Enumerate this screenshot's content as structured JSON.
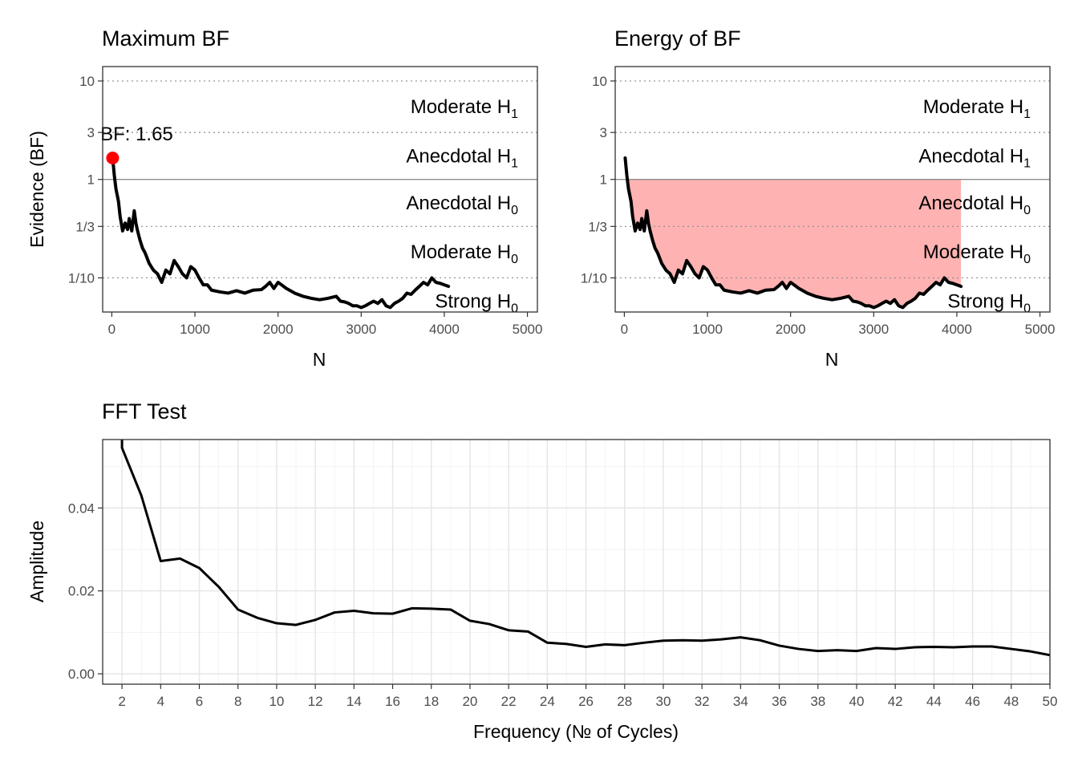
{
  "chart_data": [
    {
      "type": "line",
      "title": "Maximum BF",
      "xlabel": "N",
      "ylabel": "Evidence (BF)",
      "y_scale": "log",
      "xlim": [
        -110,
        5120
      ],
      "ylim": [
        0.045,
        14
      ],
      "x_ticks": [
        0,
        1000,
        2000,
        3000,
        4000,
        5000
      ],
      "x_tick_labels": [
        "0",
        "1000",
        "2000",
        "3000",
        "4000",
        "5000"
      ],
      "y_ticks": [
        0.1,
        0.333,
        1,
        3,
        10
      ],
      "y_tick_labels": [
        "1/10",
        "1/3",
        "1",
        "3",
        "10"
      ],
      "dotted_reference_lines": [
        0.1,
        0.333,
        3,
        10
      ],
      "solid_reference_line": 1,
      "evidence_labels": [
        {
          "main": "Moderate H",
          "sub": "1",
          "y": 5.48
        },
        {
          "main": "Anecdotal H",
          "sub": "1",
          "y": 1.73
        },
        {
          "main": "Anecdotal H",
          "sub": "0",
          "y": 0.577
        },
        {
          "main": "Moderate H",
          "sub": "0",
          "y": 0.183
        },
        {
          "main": "Strong H",
          "sub": "0",
          "y": 0.058
        }
      ],
      "max_point": {
        "x": 10,
        "y": 1.65,
        "label": "BF: 1.65",
        "color": "#ff0000"
      },
      "series": [
        {
          "x": [
            10,
            30,
            50,
            80,
            100,
            130,
            160,
            190,
            210,
            240,
            270,
            290,
            310,
            340,
            370,
            400,
            450,
            500,
            550,
            600,
            650,
            700,
            750,
            800,
            850,
            900,
            950,
            1000,
            1050,
            1100,
            1150,
            1200,
            1300,
            1400,
            1500,
            1600,
            1700,
            1800,
            1850,
            1900,
            1950,
            2000,
            2050,
            2100,
            2150,
            2200,
            2300,
            2400,
            2500,
            2600,
            2700,
            2750,
            2800,
            2850,
            2900,
            2950,
            3000,
            3050,
            3100,
            3150,
            3200,
            3250,
            3300,
            3350,
            3400,
            3450,
            3500,
            3550,
            3600,
            3650,
            3700,
            3750,
            3800,
            3850,
            3900,
            3950,
            4000,
            4050
          ],
          "values": [
            1.65,
            1.1,
            0.8,
            0.6,
            0.42,
            0.3,
            0.36,
            0.31,
            0.4,
            0.3,
            0.48,
            0.36,
            0.3,
            0.24,
            0.2,
            0.18,
            0.14,
            0.12,
            0.11,
            0.09,
            0.12,
            0.11,
            0.15,
            0.13,
            0.11,
            0.1,
            0.13,
            0.12,
            0.1,
            0.085,
            0.085,
            0.075,
            0.072,
            0.07,
            0.074,
            0.07,
            0.075,
            0.076,
            0.082,
            0.09,
            0.078,
            0.09,
            0.084,
            0.078,
            0.074,
            0.07,
            0.065,
            0.062,
            0.06,
            0.062,
            0.065,
            0.058,
            0.057,
            0.055,
            0.052,
            0.052,
            0.05,
            0.052,
            0.055,
            0.058,
            0.055,
            0.06,
            0.052,
            0.05,
            0.055,
            0.058,
            0.062,
            0.07,
            0.068,
            0.075,
            0.082,
            0.09,
            0.085,
            0.1,
            0.09,
            0.088,
            0.085,
            0.082
          ]
        }
      ]
    },
    {
      "type": "area",
      "title": "Energy of BF",
      "xlabel": "N",
      "ylabel": "",
      "y_scale": "log",
      "xlim": [
        -110,
        5120
      ],
      "ylim": [
        0.045,
        14
      ],
      "x_ticks": [
        0,
        1000,
        2000,
        3000,
        4000,
        5000
      ],
      "x_tick_labels": [
        "0",
        "1000",
        "2000",
        "3000",
        "4000",
        "5000"
      ],
      "y_ticks": [
        0.1,
        0.333,
        1,
        3,
        10
      ],
      "y_tick_labels": [
        "1/10",
        "1/3",
        "1",
        "3",
        "10"
      ],
      "dotted_reference_lines": [
        0.1,
        0.333,
        3,
        10
      ],
      "solid_reference_line": 1,
      "evidence_labels": [
        {
          "main": "Moderate H",
          "sub": "1",
          "y": 5.48
        },
        {
          "main": "Anecdotal H",
          "sub": "1",
          "y": 1.73
        },
        {
          "main": "Anecdotal H",
          "sub": "0",
          "y": 0.577
        },
        {
          "main": "Moderate H",
          "sub": "0",
          "y": 0.183
        },
        {
          "main": "Strong H",
          "sub": "0",
          "y": 0.058
        }
      ],
      "fill_color": "#ff0000",
      "fill_opacity": 0.3,
      "fill_between": "series and BF = 1",
      "series": [
        {
          "x": [
            10,
            30,
            50,
            80,
            100,
            130,
            160,
            190,
            210,
            240,
            270,
            290,
            310,
            340,
            370,
            400,
            450,
            500,
            550,
            600,
            650,
            700,
            750,
            800,
            850,
            900,
            950,
            1000,
            1050,
            1100,
            1150,
            1200,
            1300,
            1400,
            1500,
            1600,
            1700,
            1800,
            1850,
            1900,
            1950,
            2000,
            2050,
            2100,
            2150,
            2200,
            2300,
            2400,
            2500,
            2600,
            2700,
            2750,
            2800,
            2850,
            2900,
            2950,
            3000,
            3050,
            3100,
            3150,
            3200,
            3250,
            3300,
            3350,
            3400,
            3450,
            3500,
            3550,
            3600,
            3650,
            3700,
            3750,
            3800,
            3850,
            3900,
            3950,
            4000,
            4050
          ],
          "values": [
            1.65,
            1.1,
            0.8,
            0.6,
            0.42,
            0.3,
            0.36,
            0.31,
            0.4,
            0.3,
            0.48,
            0.36,
            0.3,
            0.24,
            0.2,
            0.18,
            0.14,
            0.12,
            0.11,
            0.09,
            0.12,
            0.11,
            0.15,
            0.13,
            0.11,
            0.1,
            0.13,
            0.12,
            0.1,
            0.085,
            0.085,
            0.075,
            0.072,
            0.07,
            0.074,
            0.07,
            0.075,
            0.076,
            0.082,
            0.09,
            0.078,
            0.09,
            0.084,
            0.078,
            0.074,
            0.07,
            0.065,
            0.062,
            0.06,
            0.062,
            0.065,
            0.058,
            0.057,
            0.055,
            0.052,
            0.052,
            0.05,
            0.052,
            0.055,
            0.058,
            0.055,
            0.06,
            0.052,
            0.05,
            0.055,
            0.058,
            0.062,
            0.07,
            0.068,
            0.075,
            0.082,
            0.09,
            0.085,
            0.1,
            0.09,
            0.088,
            0.085,
            0.082
          ]
        }
      ]
    },
    {
      "type": "line",
      "title": "FFT Test",
      "xlabel": "Frequency (№ of Cycles)",
      "ylabel": "Amplitude",
      "xlim": [
        1,
        50
      ],
      "ylim": [
        -0.0025,
        0.0565
      ],
      "x_ticks": [
        2,
        4,
        6,
        8,
        10,
        12,
        14,
        16,
        18,
        20,
        22,
        24,
        26,
        28,
        30,
        32,
        34,
        36,
        38,
        40,
        42,
        44,
        46,
        48,
        50
      ],
      "x_tick_labels": [
        "2",
        "4",
        "6",
        "8",
        "10",
        "12",
        "14",
        "16",
        "18",
        "20",
        "22",
        "24",
        "26",
        "28",
        "30",
        "32",
        "34",
        "36",
        "38",
        "40",
        "42",
        "44",
        "46",
        "48",
        "50"
      ],
      "y_ticks": [
        0,
        0.02,
        0.04
      ],
      "y_tick_labels": [
        "0.00",
        "0.02",
        "0.04"
      ],
      "grid": true,
      "series": [
        {
          "x": [
            2,
            3,
            4,
            5,
            6,
            7,
            8,
            9,
            10,
            11,
            12,
            13,
            14,
            15,
            16,
            17,
            18,
            19,
            20,
            21,
            22,
            23,
            24,
            25,
            26,
            27,
            28,
            29,
            30,
            31,
            32,
            33,
            34,
            35,
            36,
            37,
            38,
            39,
            40,
            41,
            42,
            43,
            44,
            45,
            46,
            47,
            48,
            49,
            50
          ],
          "values": [
            0.0545,
            0.043,
            0.0272,
            0.0278,
            0.0255,
            0.021,
            0.0155,
            0.0135,
            0.0122,
            0.0118,
            0.013,
            0.0148,
            0.0152,
            0.0146,
            0.0145,
            0.0158,
            0.0157,
            0.0155,
            0.0128,
            0.012,
            0.0105,
            0.0102,
            0.0075,
            0.0072,
            0.0065,
            0.0071,
            0.0069,
            0.0075,
            0.008,
            0.0081,
            0.008,
            0.0083,
            0.0088,
            0.0081,
            0.0068,
            0.006,
            0.0055,
            0.0057,
            0.0055,
            0.0062,
            0.006,
            0.0064,
            0.0065,
            0.0064,
            0.0066,
            0.0066,
            0.006,
            0.0054,
            0.0045
          ]
        }
      ]
    }
  ]
}
